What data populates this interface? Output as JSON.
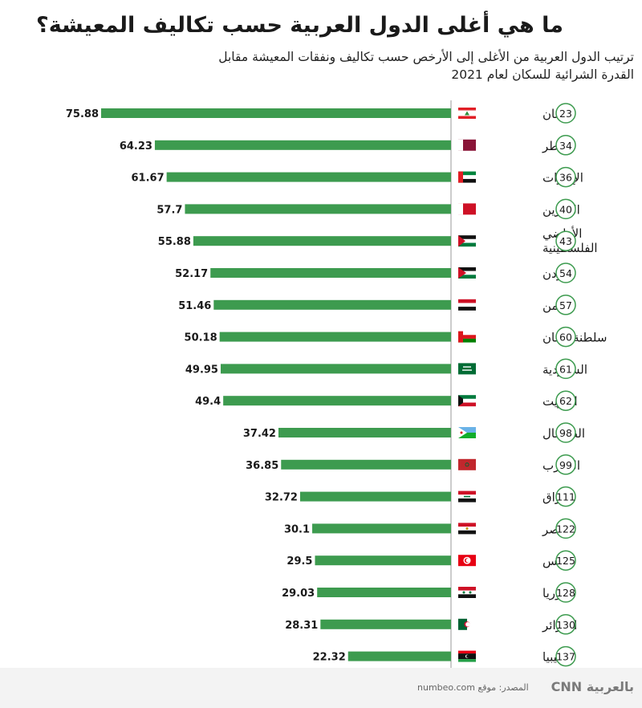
{
  "title": "ما هي أغلى الدول العربية حسب تكاليف المعيشة؟",
  "subtitle_lines": [
    "ترتيب الدول العربية من الأغلى إلى الأرخص حسب تكاليف ونفقات المعيشة مقابل",
    "القدرة الشرائية للسكان لعام 2021"
  ],
  "source": "المصدر: موقع numbeo.com",
  "logo": "بالعربية CNN",
  "colors": {
    "bar": "#3d9b4f",
    "text": "#1a1a1a",
    "rank_ring": "#3d9b4f",
    "axis": "#9a9a9a"
  },
  "chart_data": {
    "type": "bar",
    "orientation": "horizontal",
    "title": "ما هي أغلى الدول العربية حسب تكاليف المعيشة؟",
    "categories": [
      "لبنان",
      "قطر",
      "الإمارات",
      "البحرين",
      "الأراضي الفلسطينية",
      "الأردن",
      "اليمن",
      "سلطنة عمان",
      "السعودية",
      "الكويت",
      "الصومال",
      "المغرب",
      "العراق",
      "مصر",
      "تونس",
      "سوريا",
      "الجزائر",
      "ليبيا"
    ],
    "category_lines": [
      [
        "لبنان"
      ],
      [
        "قطر"
      ],
      [
        "الإمارات"
      ],
      [
        "البحرين"
      ],
      [
        "الأراضي",
        "الفلسطينية"
      ],
      [
        "الأردن"
      ],
      [
        "اليمن"
      ],
      [
        "سلطنة عمان"
      ],
      [
        "السعودية"
      ],
      [
        "الكويت"
      ],
      [
        "الصومال"
      ],
      [
        "المغرب"
      ],
      [
        "العراق"
      ],
      [
        "مصر"
      ],
      [
        "تونس"
      ],
      [
        "سوريا"
      ],
      [
        "الجزائر"
      ],
      [
        "ليبيا"
      ]
    ],
    "values": [
      75.88,
      64.23,
      61.67,
      57.7,
      55.88,
      52.17,
      51.46,
      50.18,
      49.95,
      49.4,
      37.42,
      36.85,
      32.72,
      30.1,
      29.5,
      29.03,
      28.31,
      22.32
    ],
    "value_labels": [
      "75.88",
      "64.23",
      "61.67",
      "57.7",
      "55.88",
      "52.17",
      "51.46",
      "50.18",
      "49.95",
      "49.4",
      "37.42",
      "36.85",
      "32.72",
      "30.1",
      "29.5",
      "29.03",
      "28.31",
      "22.32"
    ],
    "ranks": [
      23,
      34,
      36,
      40,
      43,
      54,
      57,
      60,
      61,
      62,
      98,
      99,
      111,
      122,
      125,
      128,
      130,
      137
    ],
    "flags": [
      "lebanon-flag-icon",
      "qatar-flag-icon",
      "uae-flag-icon",
      "bahrain-flag-icon",
      "palestine-flag-icon",
      "jordan-flag-icon",
      "yemen-flag-icon",
      "oman-flag-icon",
      "saudi-flag-icon",
      "kuwait-flag-icon",
      "djibouti-flag-icon",
      "morocco-flag-icon",
      "iraq-flag-icon",
      "egypt-flag-icon",
      "tunisia-flag-icon",
      "syria-flag-icon",
      "algeria-flag-icon",
      "libya-flag-icon"
    ],
    "bar_direction": "right-to-left",
    "xlim": [
      0,
      80
    ],
    "grid": false,
    "legend": "none"
  }
}
